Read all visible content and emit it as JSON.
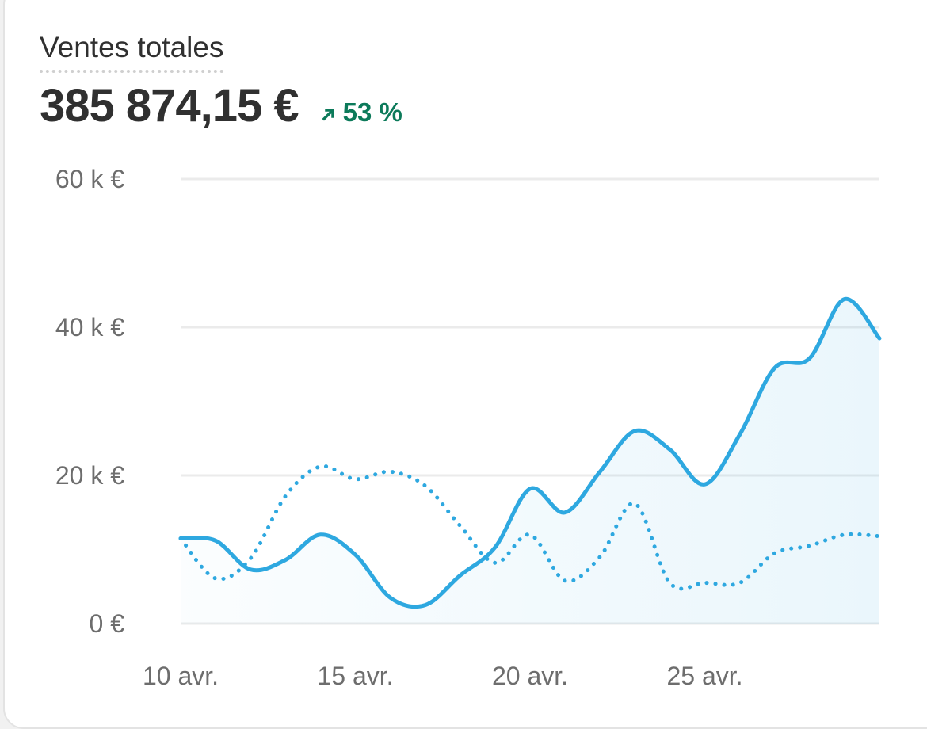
{
  "header": {
    "title": "Ventes totales",
    "total": "385 874,15 €",
    "delta": "53 %"
  },
  "colors": {
    "line": "#2ea8e0",
    "delta": "#0c7a5a",
    "grid": "#ebebeb",
    "tick": "#6d6d6d"
  },
  "icons": {
    "delta": "arrow-up-right-icon"
  },
  "chart_data": {
    "type": "line",
    "x": [
      "10 avr.",
      "11 avr.",
      "12 avr.",
      "13 avr.",
      "14 avr.",
      "15 avr.",
      "16 avr.",
      "17 avr.",
      "18 avr.",
      "19 avr.",
      "20 avr.",
      "21 avr.",
      "22 avr.",
      "23 avr.",
      "24 avr.",
      "25 avr.",
      "26 avr.",
      "27 avr.",
      "28 avr.",
      "29 avr.",
      "30 avr."
    ],
    "xticks": [
      "10 avr.",
      "15 avr.",
      "20 avr.",
      "25 avr."
    ],
    "yticks": [
      "0 €",
      "20 k €",
      "40 k €",
      "60 k €"
    ],
    "ylim": [
      0,
      60000
    ],
    "grid": true,
    "series": [
      {
        "style": "solid",
        "values": [
          11500,
          11200,
          7300,
          8600,
          12000,
          9300,
          3500,
          2500,
          6500,
          10300,
          18200,
          15000,
          20500,
          26000,
          23500,
          18800,
          25500,
          34500,
          35800,
          43800,
          38500
        ]
      },
      {
        "style": "dotted",
        "values": [
          11500,
          6100,
          8800,
          17200,
          21200,
          19500,
          20500,
          18600,
          13200,
          8200,
          12000,
          5800,
          9000,
          16200,
          5500,
          5500,
          5500,
          9500,
          10500,
          12000,
          11800
        ]
      }
    ]
  }
}
